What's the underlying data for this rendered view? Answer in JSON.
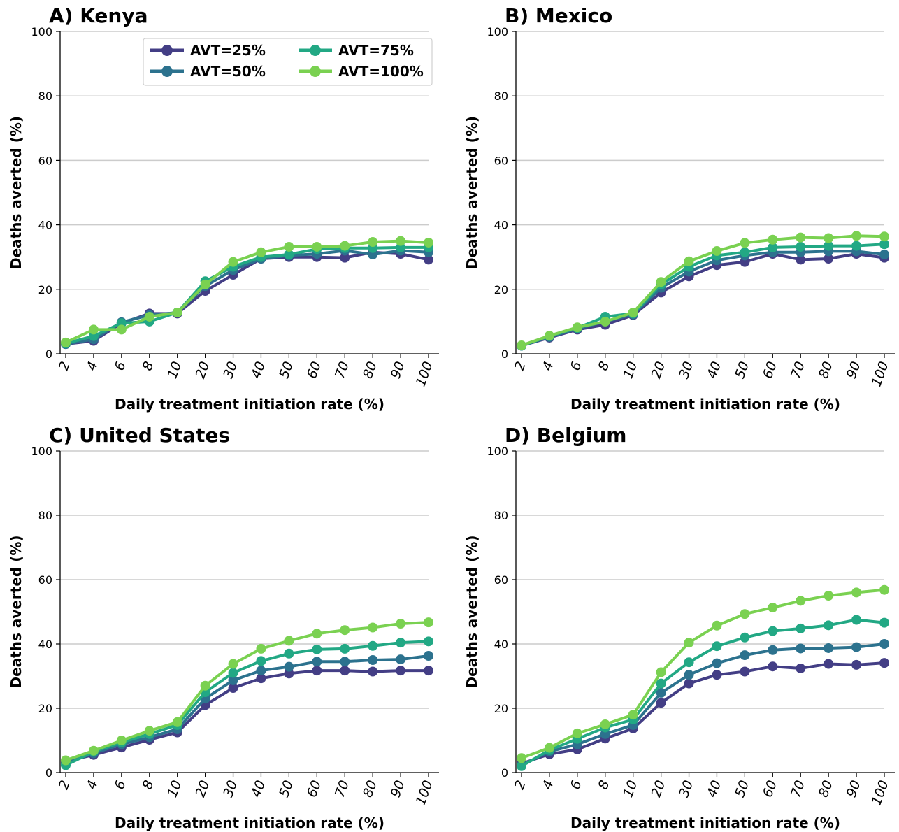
{
  "chart_data": [
    {
      "type": "line",
      "title": "A) Kenya",
      "xlabel": "Daily treatment initiation rate (%)",
      "ylabel": "Deaths averted (%)",
      "x": [
        "2",
        "4",
        "6",
        "8",
        "10",
        "20",
        "30",
        "40",
        "50",
        "60",
        "70",
        "80",
        "90",
        "100"
      ],
      "ylim": [
        0,
        100
      ],
      "yticks": [
        "0",
        "20",
        "40",
        "60",
        "80",
        "100"
      ],
      "grid": "horizontal",
      "legend": "top-right",
      "series": [
        {
          "name": "AVT=25%",
          "color": "#433e85",
          "values": [
            3.0,
            4.0,
            9.5,
            12.5,
            12.5,
            19.5,
            24.5,
            29.5,
            30.0,
            30.0,
            29.8,
            31.5,
            31.0,
            29.2
          ]
        },
        {
          "name": "AVT=50%",
          "color": "#2c728e",
          "values": [
            3.0,
            4.5,
            9.8,
            12.0,
            12.8,
            21.0,
            26.0,
            29.5,
            30.5,
            31.0,
            32.0,
            30.8,
            32.0,
            31.5
          ]
        },
        {
          "name": "AVT=75%",
          "color": "#22a884",
          "values": [
            3.2,
            5.5,
            9.5,
            10.0,
            12.8,
            22.5,
            27.0,
            30.0,
            30.8,
            32.5,
            32.8,
            32.8,
            33.0,
            33.0
          ]
        },
        {
          "name": "AVT=100%",
          "color": "#7ad151",
          "values": [
            3.5,
            7.5,
            7.5,
            11.5,
            12.8,
            21.5,
            28.5,
            31.5,
            33.2,
            33.2,
            33.5,
            34.7,
            35.0,
            34.5
          ]
        }
      ]
    },
    {
      "type": "line",
      "title": "B) Mexico",
      "xlabel": "Daily treatment initiation rate (%)",
      "ylabel": "Deaths averted (%)",
      "x": [
        "2",
        "4",
        "6",
        "8",
        "10",
        "20",
        "30",
        "40",
        "50",
        "60",
        "70",
        "80",
        "90",
        "100"
      ],
      "ylim": [
        0,
        100
      ],
      "yticks": [
        "0",
        "20",
        "40",
        "60",
        "80",
        "100"
      ],
      "grid": "horizontal",
      "series": [
        {
          "name": "AVT=25%",
          "color": "#433e85",
          "values": [
            2.5,
            5.0,
            7.5,
            9.0,
            12.0,
            19.0,
            24.0,
            27.5,
            28.5,
            31.0,
            29.2,
            29.5,
            31.0,
            29.8
          ]
        },
        {
          "name": "AVT=50%",
          "color": "#2c728e",
          "values": [
            2.5,
            5.2,
            7.8,
            10.0,
            12.2,
            20.5,
            25.5,
            29.0,
            30.5,
            31.5,
            31.5,
            31.8,
            31.8,
            30.8
          ]
        },
        {
          "name": "AVT=75%",
          "color": "#22a884",
          "values": [
            2.5,
            5.5,
            8.0,
            11.5,
            12.5,
            21.5,
            27.0,
            30.5,
            31.5,
            33.0,
            33.2,
            33.5,
            33.5,
            34.0
          ]
        },
        {
          "name": "AVT=100%",
          "color": "#7ad151",
          "values": [
            2.6,
            5.6,
            8.2,
            10.0,
            12.8,
            22.3,
            28.7,
            31.9,
            34.4,
            35.4,
            36.1,
            35.9,
            36.6,
            36.4
          ]
        }
      ]
    },
    {
      "type": "line",
      "title": "C) United States",
      "xlabel": "Daily treatment initiation rate (%)",
      "ylabel": "Deaths averted (%)",
      "x": [
        "2",
        "4",
        "6",
        "8",
        "10",
        "20",
        "30",
        "40",
        "50",
        "60",
        "70",
        "80",
        "90",
        "100"
      ],
      "ylim": [
        0,
        100
      ],
      "yticks": [
        "0",
        "20",
        "40",
        "60",
        "80",
        "100"
      ],
      "grid": "horizontal",
      "series": [
        {
          "name": "AVT=25%",
          "color": "#433e85",
          "values": [
            3.5,
            5.5,
            7.8,
            10.2,
            12.5,
            21.0,
            26.3,
            29.3,
            30.8,
            31.7,
            31.7,
            31.4,
            31.7,
            31.7
          ]
        },
        {
          "name": "AVT=50%",
          "color": "#2c728e",
          "values": [
            3.0,
            6.0,
            8.8,
            11.0,
            13.5,
            23.0,
            28.7,
            31.7,
            32.9,
            34.5,
            34.5,
            35.0,
            35.2,
            36.3
          ]
        },
        {
          "name": "AVT=75%",
          "color": "#22a884",
          "values": [
            2.3,
            6.5,
            9.4,
            12.0,
            14.8,
            25.0,
            31.0,
            34.7,
            37.0,
            38.3,
            38.5,
            39.4,
            40.4,
            40.8
          ]
        },
        {
          "name": "AVT=100%",
          "color": "#7ad151",
          "values": [
            3.8,
            6.8,
            10.0,
            13.0,
            15.7,
            27.0,
            33.8,
            38.5,
            41.0,
            43.2,
            44.3,
            45.1,
            46.3,
            46.7
          ]
        }
      ]
    },
    {
      "type": "line",
      "title": "D) Belgium",
      "xlabel": "Daily treatment initiation rate (%)",
      "ylabel": "Deaths averted (%)",
      "x": [
        "2",
        "4",
        "6",
        "8",
        "10",
        "20",
        "30",
        "40",
        "50",
        "60",
        "70",
        "80",
        "90",
        "100"
      ],
      "ylim": [
        0,
        100
      ],
      "yticks": [
        "0",
        "20",
        "40",
        "60",
        "80",
        "100"
      ],
      "grid": "horizontal",
      "series": [
        {
          "name": "AVT=25%",
          "color": "#433e85",
          "values": [
            2.8,
            5.7,
            7.2,
            10.6,
            13.7,
            21.7,
            27.7,
            30.4,
            31.4,
            33.0,
            32.4,
            33.8,
            33.5,
            34.1
          ]
        },
        {
          "name": "AVT=50%",
          "color": "#2c728e",
          "values": [
            2.3,
            6.5,
            8.8,
            12.0,
            14.8,
            24.8,
            30.4,
            34.0,
            36.5,
            38.1,
            38.6,
            38.7,
            39.0,
            40.0
          ]
        },
        {
          "name": "AVT=75%",
          "color": "#22a884",
          "values": [
            2.0,
            7.0,
            10.5,
            14.0,
            16.5,
            27.7,
            34.3,
            39.3,
            42.0,
            44.0,
            44.8,
            45.8,
            47.5,
            46.6
          ]
        },
        {
          "name": "AVT=100%",
          "color": "#7ad151",
          "values": [
            4.5,
            7.7,
            12.2,
            15.0,
            18.0,
            31.2,
            40.4,
            45.7,
            49.3,
            51.3,
            53.4,
            55.0,
            56.0,
            56.8
          ]
        }
      ]
    }
  ]
}
